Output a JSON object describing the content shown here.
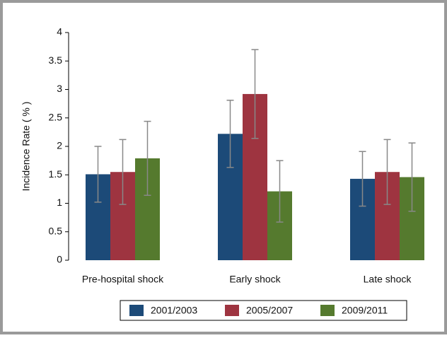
{
  "chart_data": {
    "type": "bar",
    "y_label": "Incidence Rate ( % )",
    "categories": [
      "Pre-hospital shock",
      "Early shock",
      "Late shock"
    ],
    "series": [
      {
        "name": "2001/2003",
        "color": "#1c4a78",
        "values": [
          1.51,
          2.22,
          1.43
        ],
        "errors": [
          0.49,
          0.59,
          0.48
        ]
      },
      {
        "name": "2005/2007",
        "color": "#9e3440",
        "values": [
          1.55,
          2.92,
          1.55
        ],
        "errors": [
          0.57,
          0.78,
          0.57
        ]
      },
      {
        "name": "2009/2011",
        "color": "#557a2e",
        "values": [
          1.79,
          1.21,
          1.46
        ],
        "errors": [
          0.65,
          0.54,
          0.6
        ]
      }
    ],
    "ylim": [
      0,
      4
    ],
    "yticks": [
      0,
      0.5,
      1,
      1.5,
      2,
      2.5,
      3,
      3.5,
      4
    ],
    "grid": false,
    "legend": "bottom"
  }
}
